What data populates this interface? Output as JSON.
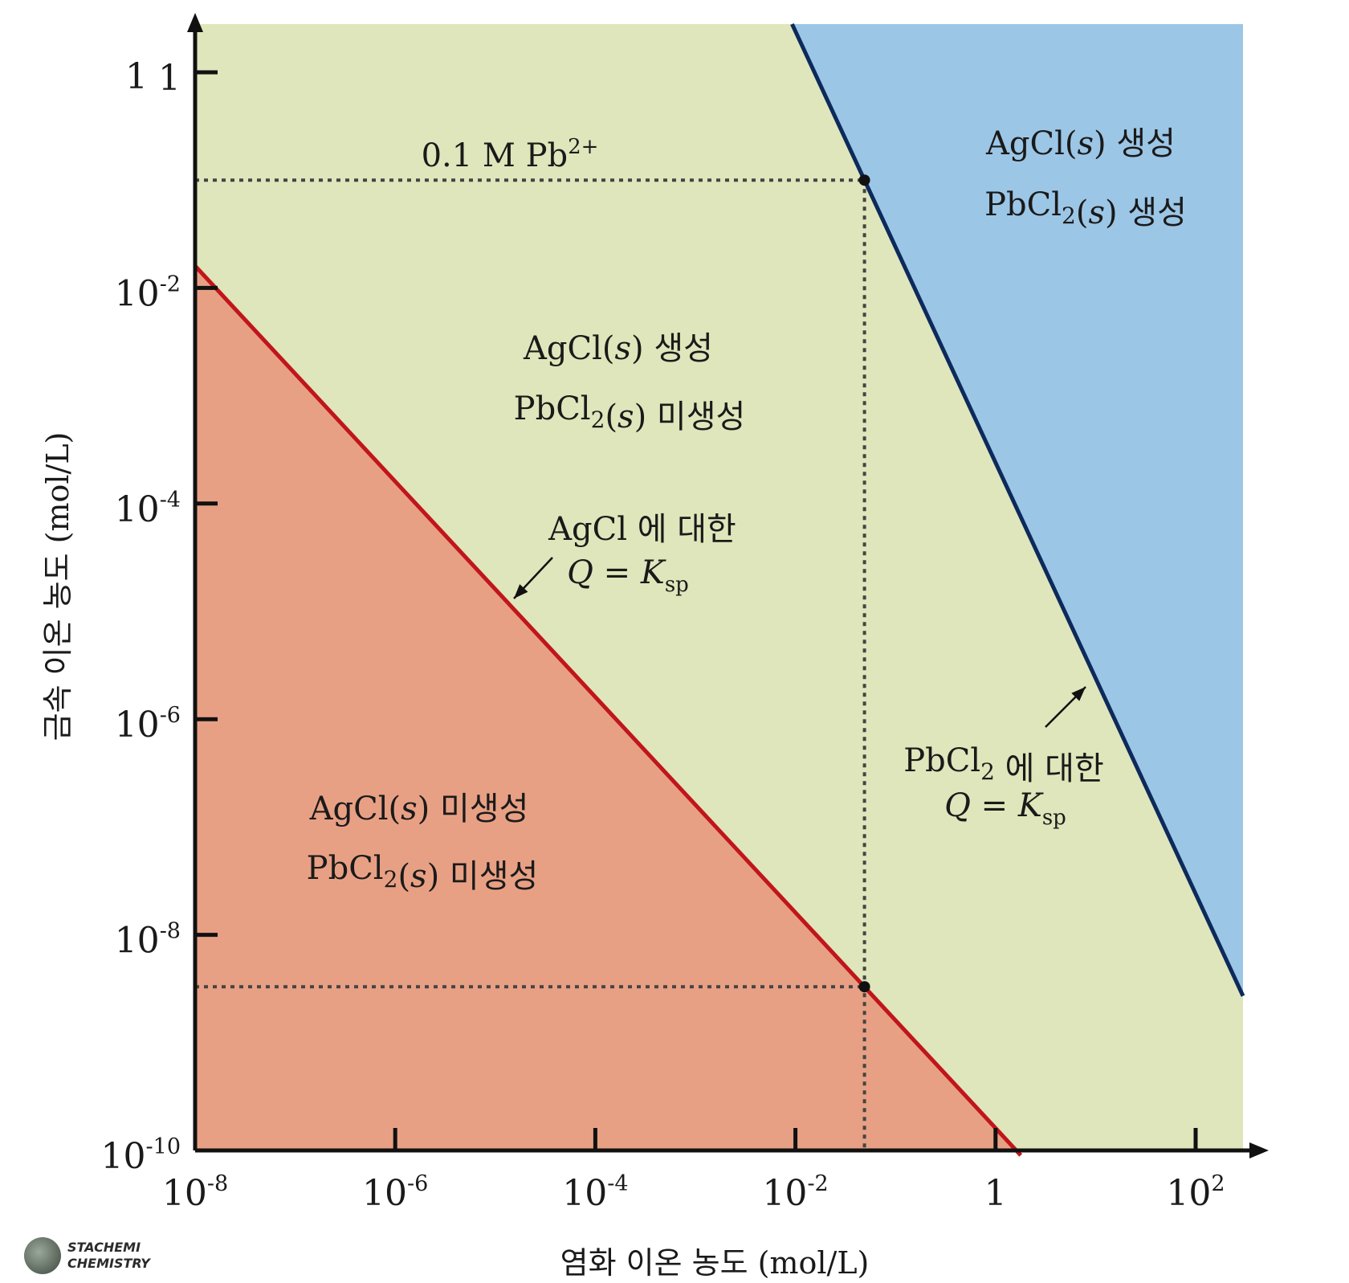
{
  "chart_data": {
    "type": "area",
    "xlabel": "염화 이온 농도 (mol/L)",
    "ylabel": "금속 이온 농도 (mol/L)",
    "x_scale": "log",
    "y_scale": "log",
    "xlim": [
      1e-08,
      300
    ],
    "ylim": [
      1e-10,
      3
    ],
    "x_ticks": [
      {
        "value": 1e-08,
        "label": "10",
        "exp": "-8"
      },
      {
        "value": 1e-06,
        "label": "10",
        "exp": "-6"
      },
      {
        "value": 0.0001,
        "label": "10",
        "exp": "-4"
      },
      {
        "value": 0.01,
        "label": "10",
        "exp": "-2"
      },
      {
        "value": 1,
        "label": "1",
        "exp": ""
      },
      {
        "value": 100,
        "label": "10",
        "exp": "2"
      }
    ],
    "y_ticks": [
      {
        "value": 1,
        "label": "1",
        "exp": ""
      },
      {
        "value": 0.01,
        "label": "10",
        "exp": "-2"
      },
      {
        "value": 0.0001,
        "label": "10",
        "exp": "-4"
      },
      {
        "value": 1e-06,
        "label": "10",
        "exp": "-6"
      },
      {
        "value": 1e-08,
        "label": "10",
        "exp": "-8"
      },
      {
        "value": 1e-10,
        "label": "10",
        "exp": "-10"
      }
    ],
    "stray_y_label": "1",
    "series": [
      {
        "name": "AgCl 에 대한 Q = Ksp",
        "color": "#c0161b",
        "ksp": 1.6e-10,
        "slope": -1
      },
      {
        "name": "PbCl2 에 대한 Q = Ksp",
        "color": "#0d2a5c",
        "ksp": 0.00024,
        "slope": -2
      }
    ],
    "regions": [
      {
        "name": "no_precipitate",
        "color": "#e8a084",
        "lines": [
          "AgCl(s) 미생성",
          "PbCl2(s) 미생성"
        ]
      },
      {
        "name": "agcl_only",
        "color": "#dfe6bb",
        "lines": [
          "AgCl(s) 생성",
          "PbCl2(s) 미생성"
        ]
      },
      {
        "name": "both",
        "color": "#9cc6e6",
        "lines": [
          "AgCl(s) 생성",
          "PbCl2(s) 생성"
        ]
      }
    ],
    "reference": {
      "label": "0.1 M Pb2+",
      "pb_conc": 0.1,
      "cl_conc": 0.049,
      "ag_conc": 3.3e-09
    },
    "annotations": {
      "agcl_line_label": "AgCl 에 대한",
      "pbcl2_line_label": "PbCl2 에 대한",
      "q_eq": "Q = K",
      "q_sub": "sp"
    }
  },
  "watermark": {
    "line1": "STACHEMI",
    "line2": "CHEMISTRY"
  },
  "colors": {
    "axis": "#111111",
    "dotted": "#444444",
    "text": "#1a1a1a"
  }
}
